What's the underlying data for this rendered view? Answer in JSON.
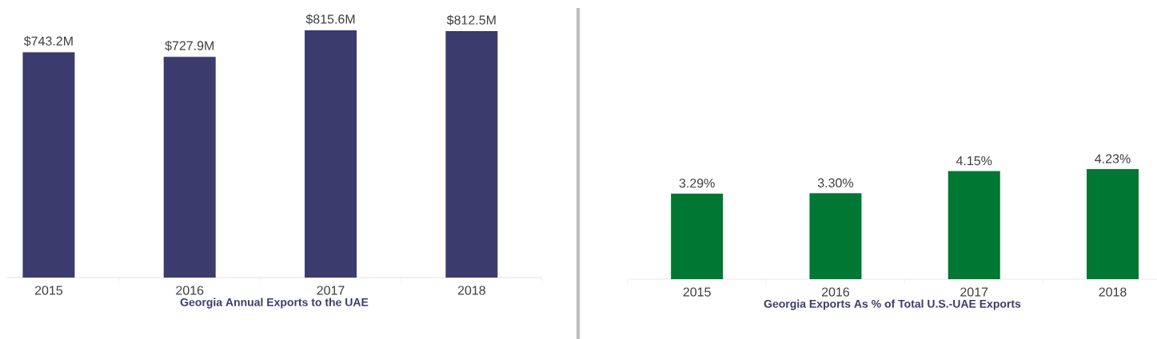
{
  "chart_data": [
    {
      "type": "bar",
      "xlabel": "Georgia Annual Exports to the UAE",
      "categories": [
        "2015",
        "2016",
        "2017",
        "2018"
      ],
      "values": [
        743.2,
        727.9,
        815.6,
        812.5
      ],
      "value_labels": [
        "$743.2M",
        "$727.9M",
        "$815.6M",
        "$812.5M"
      ],
      "color": "#3c3b6e",
      "tick_labels": "x"
    },
    {
      "type": "bar",
      "xlabel": "Georgia Exports As % of Total U.S.-UAE Exports",
      "categories": [
        "2015",
        "2016",
        "2017",
        "2018"
      ],
      "values": [
        3.29,
        3.3,
        4.15,
        4.23
      ],
      "value_labels": [
        "3.29%",
        "3.30%",
        "4.15%",
        "4.23%"
      ],
      "color": "#007732",
      "tick_labels": "x"
    }
  ]
}
